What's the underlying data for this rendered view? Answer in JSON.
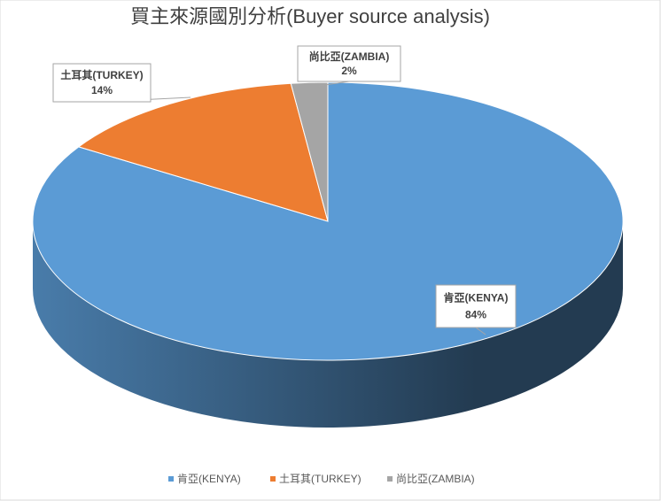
{
  "chart_data": {
    "type": "pie3d",
    "title": "買主來源國別分析(Buyer source analysis)",
    "categories": [
      "肯亞(KENYA)",
      "土耳其(TURKEY)",
      "尚比亞(ZAMBIA)"
    ],
    "values": [
      84,
      14,
      2
    ],
    "value_labels": [
      "84%",
      "14%",
      "2%"
    ],
    "colors": [
      "#5b9bd5",
      "#ed7d31",
      "#a5a5a5"
    ],
    "legend": "bottom"
  }
}
